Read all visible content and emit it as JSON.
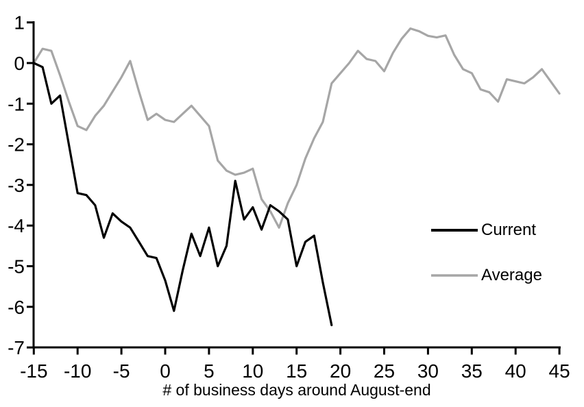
{
  "chart_data": {
    "type": "line",
    "title": "",
    "xlabel": "# of business days around August-end",
    "ylabel": "",
    "xlim": [
      -15,
      45
    ],
    "ylim": [
      -7,
      1
    ],
    "grid": false,
    "background_color": "#ffffff",
    "axis_color": "#000000",
    "x_ticks": [
      -15,
      -10,
      -5,
      0,
      5,
      10,
      15,
      20,
      25,
      30,
      35,
      40,
      45
    ],
    "y_ticks": [
      1,
      0,
      -1,
      -2,
      -3,
      -4,
      -5,
      -6,
      -7
    ],
    "legend": {
      "position": "right-middle",
      "entries": [
        "Current",
        "Average"
      ]
    },
    "series": [
      {
        "name": "Current",
        "color": "#000000",
        "x": [
          -15,
          -14,
          -13,
          -12,
          -11,
          -10,
          -9,
          -8,
          -7,
          -6,
          -5,
          -4,
          -3,
          -2,
          -1,
          0,
          1,
          2,
          3,
          4,
          5,
          6,
          7,
          8,
          9,
          10,
          11,
          12,
          13,
          14,
          15,
          16,
          17,
          18,
          19
        ],
        "values": [
          0,
          -0.1,
          -1.0,
          -0.8,
          -2.0,
          -3.2,
          -3.25,
          -3.5,
          -4.3,
          -3.7,
          -3.9,
          -4.05,
          -4.4,
          -4.75,
          -4.8,
          -5.35,
          -6.1,
          -5.1,
          -4.2,
          -4.75,
          -4.05,
          -5.0,
          -4.5,
          -2.9,
          -3.85,
          -3.55,
          -4.1,
          -3.5,
          -3.65,
          -3.85,
          -5.0,
          -4.4,
          -4.25,
          -5.4,
          -6.45
        ]
      },
      {
        "name": "Average",
        "color": "#a6a6a6",
        "x": [
          -15,
          -14,
          -13,
          -12,
          -11,
          -10,
          -9,
          -8,
          -7,
          -6,
          -5,
          -4,
          -3,
          -2,
          -1,
          0,
          1,
          2,
          3,
          4,
          5,
          6,
          7,
          8,
          9,
          10,
          11,
          12,
          13,
          14,
          15,
          16,
          17,
          18,
          19,
          20,
          21,
          22,
          23,
          24,
          25,
          26,
          27,
          28,
          29,
          30,
          31,
          32,
          33,
          34,
          35,
          36,
          37,
          38,
          39,
          40,
          41,
          42,
          43,
          44,
          45
        ],
        "values": [
          0,
          0.35,
          0.3,
          -0.3,
          -0.95,
          -1.55,
          -1.65,
          -1.3,
          -1.05,
          -0.7,
          -0.35,
          0.05,
          -0.7,
          -1.4,
          -1.25,
          -1.4,
          -1.45,
          -1.25,
          -1.05,
          -1.3,
          -1.55,
          -2.4,
          -2.65,
          -2.75,
          -2.7,
          -2.6,
          -3.35,
          -3.65,
          -4.05,
          -3.45,
          -3.0,
          -2.35,
          -1.85,
          -1.45,
          -0.5,
          -0.25,
          0.0,
          0.3,
          0.1,
          0.05,
          -0.2,
          0.25,
          0.6,
          0.85,
          0.78,
          0.67,
          0.63,
          0.68,
          0.2,
          -0.15,
          -0.25,
          -0.65,
          -0.72,
          -0.95,
          -0.4,
          -0.45,
          -0.5,
          -0.35,
          -0.15,
          -0.45,
          -0.75
        ]
      }
    ]
  }
}
